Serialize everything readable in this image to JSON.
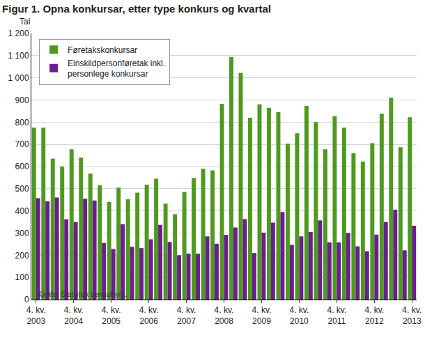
{
  "chart_data": {
    "type": "bar",
    "title": "Figur 1. Opna konkursar, etter type konkurs og kvartal",
    "ylabel": "Tal",
    "annotations": [
      "Kjelde: Statistisk sentralbyrå."
    ],
    "categories": [
      "4. kv. 2003",
      null,
      null,
      null,
      "4. kv. 2004",
      null,
      null,
      null,
      "4. kv. 2005",
      null,
      null,
      null,
      "4. kv. 2006",
      null,
      null,
      null,
      "4. kv. 2007",
      null,
      null,
      null,
      "4. kv. 2008",
      null,
      null,
      null,
      "4. kv. 2009",
      null,
      null,
      null,
      "4. kv. 2010",
      null,
      null,
      null,
      "4. kv. 2011",
      null,
      null,
      null,
      "4. kv. 2012",
      null,
      null,
      null,
      "4. kv. 2013"
    ],
    "series": [
      {
        "name": "Føretakskonkursar",
        "color": "#4e9a1f",
        "values": [
          775,
          775,
          635,
          600,
          678,
          640,
          568,
          515,
          440,
          505,
          452,
          482,
          518,
          545,
          433,
          385,
          485,
          548,
          590,
          583,
          883,
          1093,
          1022,
          820,
          880,
          865,
          845,
          703,
          750,
          873,
          800,
          678,
          827,
          775,
          660,
          623,
          705,
          838,
          910,
          687,
          822
        ]
      },
      {
        "name": "Einskildpersonføretak inkl. personlege konkursar",
        "color": "#6b1f8e",
        "values": [
          457,
          443,
          460,
          362,
          350,
          455,
          447,
          255,
          228,
          340,
          238,
          232,
          272,
          337,
          260,
          200,
          207,
          207,
          285,
          252,
          292,
          325,
          363,
          210,
          302,
          347,
          395,
          247,
          285,
          305,
          357,
          258,
          258,
          300,
          240,
          218,
          293,
          350,
          405,
          222,
          333
        ]
      }
    ],
    "ylim": [
      0,
      1200
    ],
    "yticks": [
      0,
      100,
      200,
      300,
      400,
      500,
      600,
      700,
      800,
      900,
      {
        "value": 1000,
        "label": "1 000"
      },
      {
        "value": 1100,
        "label": "1 100"
      },
      {
        "value": 1200,
        "label": "1 200"
      }
    ],
    "grid": true,
    "legend": "top-left"
  }
}
